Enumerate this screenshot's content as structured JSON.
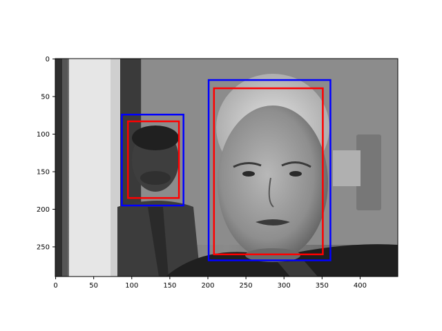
{
  "chart_data": {
    "type": "image",
    "image_kind": "grayscale photograph",
    "image_size": [
      450,
      290
    ],
    "xlim": [
      -0.5,
      449.5
    ],
    "ylim": [
      289.5,
      -0.5
    ],
    "y_inverted": true,
    "xticks": [
      0,
      50,
      100,
      150,
      200,
      250,
      300,
      350,
      400
    ],
    "yticks": [
      0,
      50,
      100,
      150,
      200,
      250
    ],
    "xlabel": "",
    "ylabel": "",
    "title": "",
    "grid": false,
    "boxes": [
      {
        "color": "#0000ff",
        "x0": 87,
        "y0": 74,
        "x1": 168,
        "y1": 195
      },
      {
        "color": "#ff0000",
        "x0": 95,
        "y0": 83,
        "x1": 162,
        "y1": 185
      },
      {
        "color": "#0000ff",
        "x0": 201,
        "y0": 28,
        "x1": 361,
        "y1": 268
      },
      {
        "color": "#ff0000",
        "x0": 208,
        "y0": 39,
        "x1": 351,
        "y1": 260
      }
    ]
  }
}
